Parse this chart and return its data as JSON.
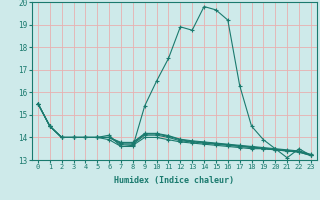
{
  "xlabel": "Humidex (Indice chaleur)",
  "background_color": "#ceeaea",
  "grid_color": "#b0d4d4",
  "line_color": "#1a7a6e",
  "xlim": [
    0,
    23
  ],
  "ylim": [
    13,
    20
  ],
  "xticks": [
    0,
    1,
    2,
    3,
    4,
    5,
    6,
    7,
    8,
    9,
    10,
    11,
    12,
    13,
    14,
    15,
    16,
    17,
    18,
    19,
    20,
    21,
    22,
    23
  ],
  "yticks": [
    13,
    14,
    15,
    16,
    17,
    18,
    19,
    20
  ],
  "series": [
    [
      15.5,
      14.5,
      14.0,
      14.0,
      14.0,
      14.0,
      14.1,
      13.6,
      13.6,
      15.4,
      16.5,
      17.5,
      18.9,
      18.75,
      19.8,
      19.65,
      19.2,
      16.3,
      14.5,
      13.9,
      13.5,
      13.1,
      13.5,
      13.2
    ],
    [
      15.5,
      14.5,
      14.0,
      14.0,
      14.0,
      14.0,
      13.9,
      13.6,
      13.65,
      14.0,
      14.0,
      13.9,
      13.8,
      13.75,
      13.7,
      13.65,
      13.6,
      13.55,
      13.5,
      13.5,
      13.45,
      13.4,
      13.35,
      13.2
    ],
    [
      15.5,
      14.5,
      14.0,
      14.0,
      14.0,
      14.0,
      14.0,
      13.7,
      13.7,
      14.1,
      14.1,
      14.0,
      13.85,
      13.8,
      13.75,
      13.7,
      13.65,
      13.6,
      13.55,
      13.5,
      13.45,
      13.4,
      13.35,
      13.2
    ],
    [
      15.5,
      14.5,
      14.0,
      14.0,
      14.0,
      14.0,
      14.0,
      13.75,
      13.75,
      14.15,
      14.15,
      14.05,
      13.9,
      13.82,
      13.78,
      13.72,
      13.68,
      13.62,
      13.58,
      13.52,
      13.47,
      13.42,
      13.38,
      13.22
    ],
    [
      15.5,
      14.5,
      14.0,
      14.0,
      14.0,
      14.0,
      14.0,
      13.78,
      13.78,
      14.18,
      14.18,
      14.08,
      13.92,
      13.85,
      13.8,
      13.75,
      13.7,
      13.65,
      13.6,
      13.55,
      13.5,
      13.45,
      13.4,
      13.25
    ]
  ]
}
